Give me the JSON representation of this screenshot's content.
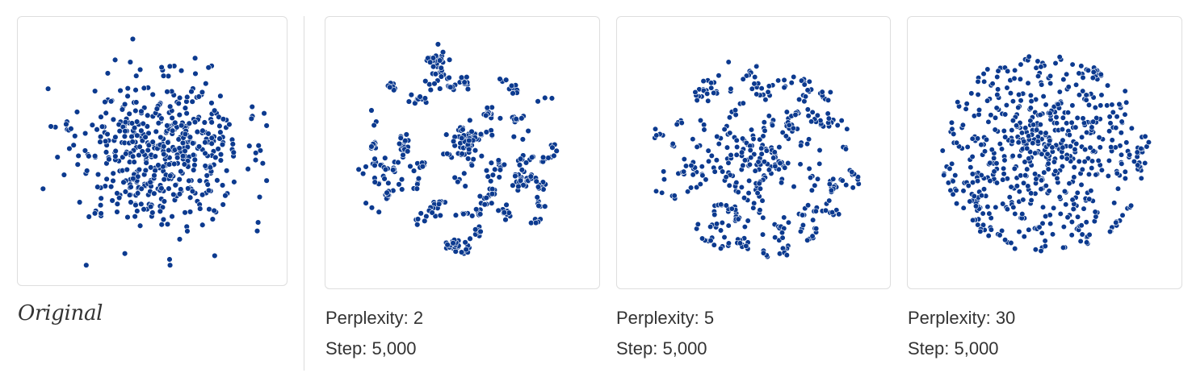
{
  "point_color": "#0c3a8f",
  "panels": [
    {
      "id": "original",
      "caption": "Original",
      "points": 520,
      "distribution": "gaussian",
      "seed": 11
    },
    {
      "id": "perp2",
      "perplexity_label": "Perplexity: 2",
      "step_label": "Step: 5,000",
      "perplexity": 2,
      "step": 5000,
      "distribution": "clumped",
      "seed": 23
    },
    {
      "id": "perp5",
      "perplexity_label": "Perplexity: 5",
      "step_label": "Step: 5,000",
      "perplexity": 5,
      "step": 5000,
      "distribution": "semi-clumped",
      "seed": 37
    },
    {
      "id": "perp30",
      "perplexity_label": "Perplexity: 30",
      "step_label": "Step: 5,000",
      "perplexity": 30,
      "step": 5000,
      "distribution": "uniform-disc",
      "seed": 51
    }
  ]
}
